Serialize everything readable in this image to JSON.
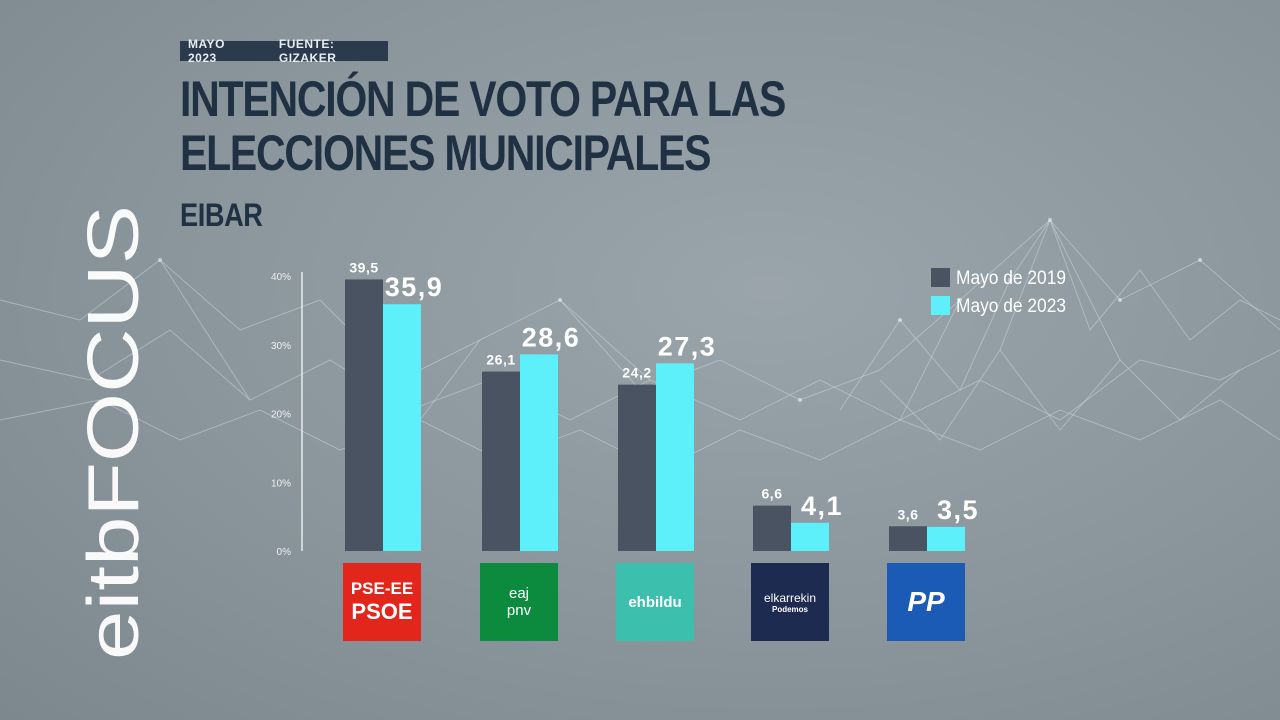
{
  "header": {
    "date": "MAYO 2023",
    "source": "FUENTE: GIZAKER",
    "title": "INTENCIÓN DE VOTO PARA LAS ELECCIONES MUNICIPALES",
    "subtitle": "EIBAR"
  },
  "brand": {
    "text": "eitbFOCUS"
  },
  "colors": {
    "series_2019": "#4a5361",
    "series_2023": "#5df0fa",
    "title": "#1f3143"
  },
  "parties": [
    {
      "logo_text_1": "PSE-EE",
      "logo_text_2": "PSOE",
      "logo_color": "#e3261b"
    },
    {
      "logo_text_1": "eaj",
      "logo_text_2": "pnv",
      "logo_color": "#0c8a3e"
    },
    {
      "logo_text_1": "ehbildu",
      "logo_text_2": "",
      "logo_color": "#3dbfae"
    },
    {
      "logo_text_1": "elkarrekin",
      "logo_text_2": "Podemos",
      "logo_color": "#1d2b50"
    },
    {
      "logo_text_1": "PP",
      "logo_text_2": "",
      "logo_color": "#1c5bb5"
    }
  ],
  "chart_data": {
    "type": "bar",
    "categories": [
      "PSE-EE PSOE",
      "EAJ-PNV",
      "EH Bildu",
      "Elkarrekin Podemos",
      "PP"
    ],
    "series": [
      {
        "name": "Mayo de 2019",
        "values": [
          39.5,
          26.1,
          24.2,
          6.6,
          3.6
        ],
        "labels": [
          "39,5",
          "26,1",
          "24,2",
          "6,6",
          "3,6"
        ]
      },
      {
        "name": "Mayo de 2023",
        "values": [
          35.9,
          28.6,
          27.3,
          4.1,
          3.5
        ],
        "labels": [
          "35,9",
          "28,6",
          "27,3",
          "4,1",
          "3,5"
        ]
      }
    ],
    "ylim": [
      0,
      40
    ],
    "yticks": [
      "0%",
      "10%",
      "20%",
      "30%",
      "40%"
    ],
    "legend": "top-right",
    "grid": false
  }
}
